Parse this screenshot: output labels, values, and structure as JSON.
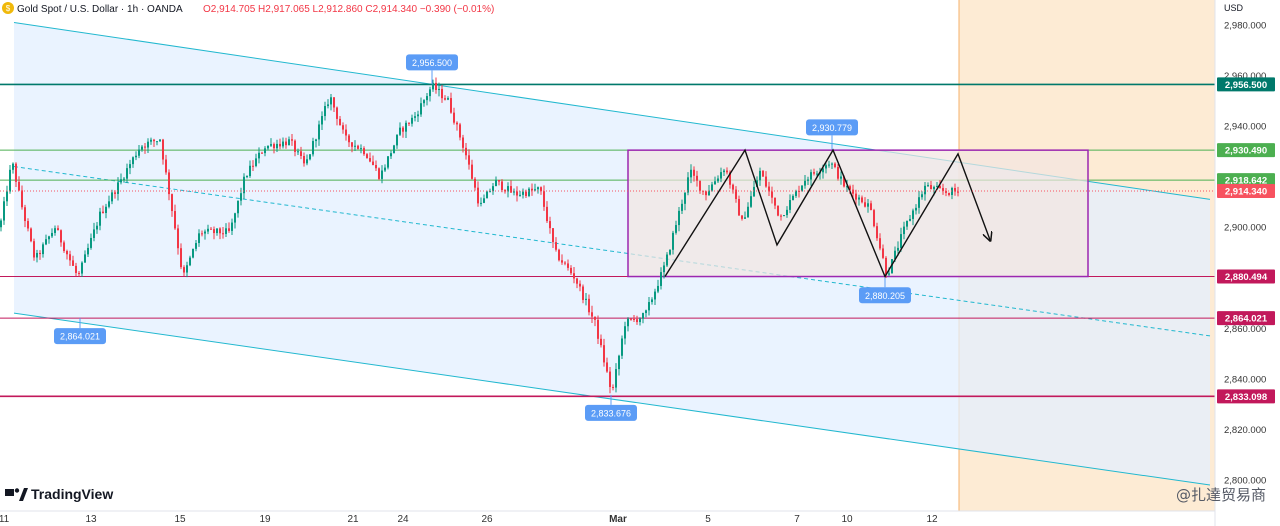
{
  "header": {
    "symbol": "Gold Spot / U.S. Dollar · 1h · OANDA",
    "ohlc": "O2,914.705 H2,917.065 L2,912.860 C2,914.340 −0.390 (−0.01%)"
  },
  "currency": "USD",
  "watermark": "@扎達贸易商",
  "brand": "TradingView",
  "colors": {
    "up": "#089981",
    "down": "#f23645",
    "channel_line": "#22b8cf",
    "channel_fill": "#e3efff",
    "future_fill": "#fde8cc",
    "box_border": "#9c27b0",
    "box_fill": "#f2e6e1",
    "green_level": "#4caf50",
    "teal_level": "#00796b",
    "magenta_level": "#c2185b",
    "callout": "#5b9cf6",
    "last_price": "#f7525f"
  },
  "chart_data": {
    "type": "candlestick",
    "title": "Gold Spot / U.S. Dollar · 1h · OANDA",
    "ylim": [
      2796,
      2983
    ],
    "x_ticks": [
      "11",
      "13",
      "15",
      "19",
      "21",
      "24",
      "26",
      "Mar",
      "5",
      "7",
      "10",
      "12"
    ],
    "y_ticks": [
      "2,800.000",
      "2,820.000",
      "2,840.000",
      "2,860.000",
      "2,880.000",
      "2,900.000",
      "2,920.000",
      "2,940.000",
      "2,960.000",
      "2,980.000"
    ],
    "y_tick_values": [
      2800,
      2820,
      2840,
      2860,
      2880,
      2900,
      2920,
      2940,
      2960,
      2980
    ],
    "path": [
      [
        0,
        2900
      ],
      [
        12,
        2926
      ],
      [
        22,
        2908
      ],
      [
        35,
        2887
      ],
      [
        55,
        2900
      ],
      [
        78,
        2880
      ],
      [
        100,
        2905
      ],
      [
        120,
        2918
      ],
      [
        140,
        2932
      ],
      [
        160,
        2935
      ],
      [
        175,
        2900
      ],
      [
        183,
        2880
      ],
      [
        200,
        2898
      ],
      [
        230,
        2898
      ],
      [
        245,
        2920
      ],
      [
        265,
        2932
      ],
      [
        290,
        2934
      ],
      [
        305,
        2924
      ],
      [
        330,
        2952
      ],
      [
        345,
        2935
      ],
      [
        365,
        2930
      ],
      [
        380,
        2920
      ],
      [
        400,
        2938
      ],
      [
        415,
        2944
      ],
      [
        432,
        2956
      ],
      [
        448,
        2950
      ],
      [
        465,
        2930
      ],
      [
        480,
        2908
      ],
      [
        495,
        2918
      ],
      [
        515,
        2913
      ],
      [
        540,
        2915
      ],
      [
        555,
        2890
      ],
      [
        575,
        2880
      ],
      [
        595,
        2862
      ],
      [
        612,
        2834
      ],
      [
        625,
        2862
      ],
      [
        645,
        2865
      ],
      [
        665,
        2885
      ],
      [
        690,
        2922
      ],
      [
        705,
        2913
      ],
      [
        725,
        2924
      ],
      [
        742,
        2902
      ],
      [
        760,
        2922
      ],
      [
        780,
        2904
      ],
      [
        805,
        2919
      ],
      [
        830,
        2926
      ],
      [
        845,
        2916
      ],
      [
        870,
        2908
      ],
      [
        887,
        2881
      ],
      [
        905,
        2900
      ],
      [
        925,
        2916
      ],
      [
        945,
        2914
      ],
      [
        958,
        2914
      ]
    ],
    "levels": [
      {
        "value": 2956.5,
        "label": "2,956.500",
        "color": "#00796b",
        "width": 1.6
      },
      {
        "value": 2930.49,
        "label": "2,930.490",
        "color": "#4caf50",
        "width": 1
      },
      {
        "value": 2918.642,
        "label": "2,918.642",
        "color": "#4caf50",
        "width": 1
      },
      {
        "value": 2880.494,
        "label": "2,880.494",
        "color": "#c2185b",
        "width": 1
      },
      {
        "value": 2864.021,
        "label": "2,864.021",
        "color": "#c2185b",
        "width": 1
      },
      {
        "value": 2833.098,
        "label": "2,833.098",
        "color": "#c2185b",
        "width": 1.6
      }
    ],
    "last_price": {
      "value": 2914.34,
      "label": "2,914.340"
    },
    "callouts": [
      {
        "label": "2,956.500",
        "bar": 432,
        "price": 2956.5,
        "side": "above"
      },
      {
        "label": "2,930.779",
        "bar": 832,
        "price": 2930.779,
        "side": "above"
      },
      {
        "label": "2,864.021",
        "bar": 80,
        "price": 2864.021,
        "side": "below"
      },
      {
        "label": "2,880.205",
        "bar": 885,
        "price": 2880.205,
        "side": "below"
      },
      {
        "label": "2,833.676",
        "bar": 611,
        "price": 2833.676,
        "side": "below"
      }
    ],
    "channel": {
      "upper": [
        [
          14,
          2981
        ],
        [
          1210,
          2911
        ]
      ],
      "lower": [
        [
          14,
          2866
        ],
        [
          1210,
          2798
        ]
      ],
      "mid": [
        [
          14,
          2924
        ],
        [
          1210,
          2857
        ]
      ]
    },
    "range_box": {
      "x1": 628,
      "x2": 1088,
      "top": 2930.49,
      "bottom": 2880.494
    },
    "zigzag": [
      [
        665,
        2880.5
      ],
      [
        745,
        2930.5
      ],
      [
        777,
        2893
      ],
      [
        833,
        2930.5
      ],
      [
        885,
        2880.5
      ],
      [
        958,
        2929
      ],
      [
        990,
        2895
      ]
    ]
  }
}
